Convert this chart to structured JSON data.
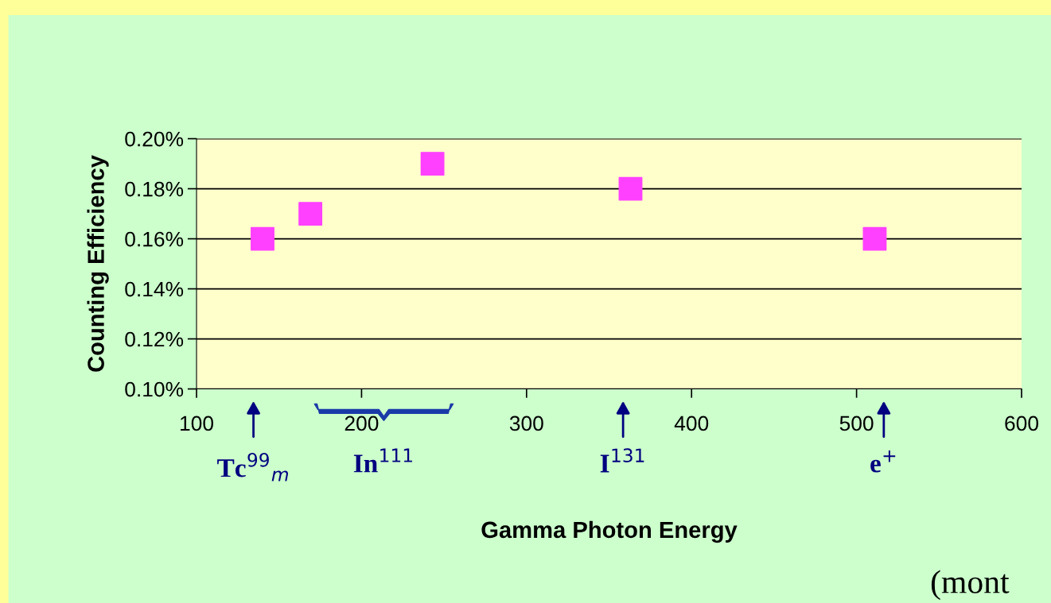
{
  "chart_data": {
    "type": "scatter",
    "xlabel": "Gamma Photon Energy",
    "ylabel": "Counting Efficiency",
    "x": [
      140,
      169,
      243,
      363,
      511
    ],
    "series": [
      {
        "color": "#ff40ff",
        "values": [
          0.16,
          0.17,
          0.19,
          0.18,
          0.16
        ]
      }
    ],
    "marker": "square",
    "grid": "y",
    "legend": false,
    "xlim": [
      100,
      600
    ],
    "xticks": [
      100,
      200,
      300,
      400,
      500,
      600
    ],
    "ylim": [
      0.1,
      0.2
    ],
    "yticks": [
      {
        "value": 0.1,
        "label": "0.10%"
      },
      {
        "value": 0.12,
        "label": "0.12%"
      },
      {
        "value": 0.14,
        "label": "0.14%"
      },
      {
        "value": 0.16,
        "label": "0.16%"
      },
      {
        "value": 0.18,
        "label": "0.18%"
      },
      {
        "value": 0.2,
        "label": "0.20%"
      }
    ],
    "annotations": [
      "Tc$^{99}$$_{m}$",
      "In$^{111}$",
      "I$^{131}$",
      "e$^{+}$",
      "(mont"
    ]
  }
}
